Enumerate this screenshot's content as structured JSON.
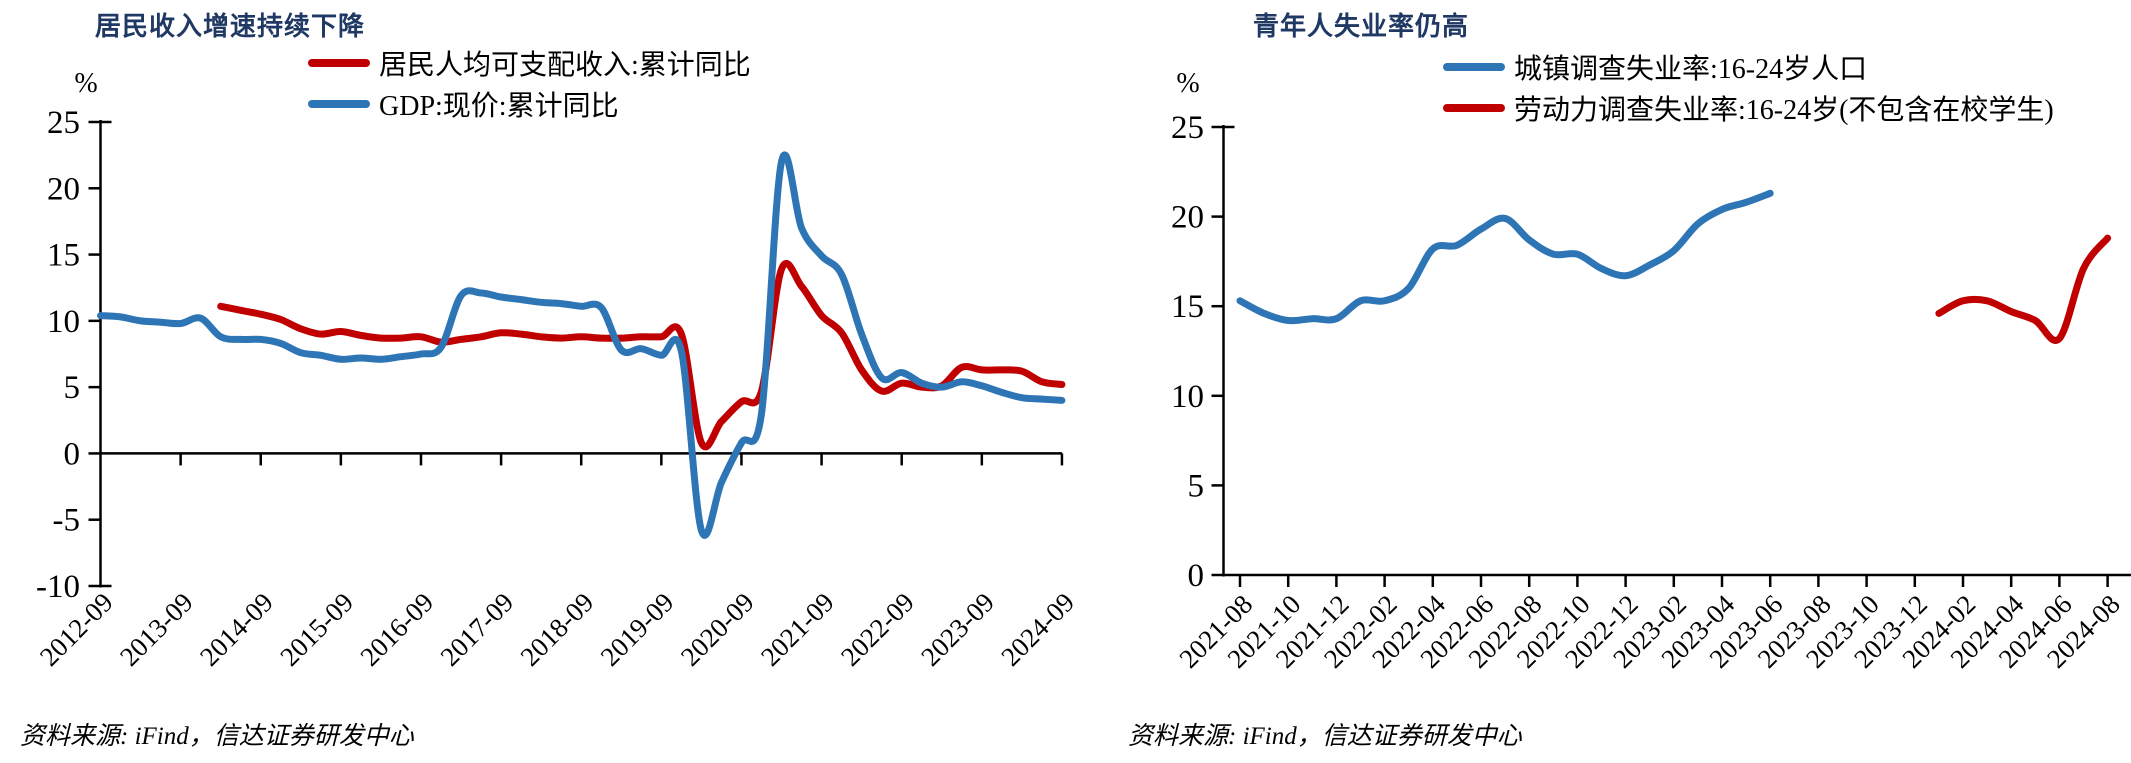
{
  "page": {
    "background": "#ffffff"
  },
  "chart_data": [
    {
      "id": "income-gdp",
      "type": "line",
      "title": "居民收入增速持续下降",
      "title_color": "#1f3864",
      "unit": "%",
      "source": "资料来源: iFind，信达证券研发中心",
      "grid": false,
      "legend_position": "top",
      "ylim": [
        -10,
        25
      ],
      "y_ticks": [
        25,
        20,
        15,
        10,
        5,
        0,
        -5,
        -10
      ],
      "x_labels": [
        "2012-09",
        "2013-09",
        "2014-09",
        "2015-09",
        "2016-09",
        "2017-09",
        "2018-09",
        "2019-09",
        "2020-09",
        "2021-09",
        "2022-09",
        "2023-09",
        "2024-09"
      ],
      "periods_per_label": 4,
      "period": "quarterly",
      "series": [
        {
          "name": "居民人均可支配收入:累计同比",
          "color": "#c00000",
          "start_index": 6,
          "values": [
            11.1,
            10.8,
            10.5,
            10.1,
            9.4,
            9.0,
            9.2,
            8.9,
            8.7,
            8.7,
            8.8,
            8.4,
            8.6,
            8.8,
            9.1,
            9.0,
            8.8,
            8.7,
            8.8,
            8.7,
            8.7,
            8.8,
            8.8,
            9.0,
            0.8,
            2.4,
            3.9,
            4.7,
            13.9,
            12.6,
            10.4,
            9.1,
            6.3,
            4.7,
            5.3,
            5.0,
            5.1,
            6.5,
            6.3,
            6.3,
            6.2,
            5.4,
            5.2
          ]
        },
        {
          "name": "GDP:现价:累计同比",
          "color": "#2e75b6",
          "start_index": 0,
          "values": [
            10.4,
            10.3,
            10.0,
            9.9,
            9.8,
            10.2,
            8.8,
            8.6,
            8.6,
            8.3,
            7.6,
            7.4,
            7.1,
            7.2,
            7.1,
            7.3,
            7.5,
            8.0,
            11.9,
            12.1,
            11.8,
            11.6,
            11.4,
            11.3,
            11.1,
            11.0,
            7.8,
            7.9,
            7.4,
            7.7,
            -5.8,
            -2.2,
            0.8,
            3.0,
            22.0,
            17.0,
            14.9,
            13.5,
            9.0,
            5.7,
            6.1,
            5.3,
            5.0,
            5.4,
            5.1,
            4.6,
            4.2,
            4.1,
            4.0
          ]
        }
      ]
    },
    {
      "id": "youth-unemployment",
      "type": "line",
      "title": "青年人失业率仍高",
      "title_color": "#1f3864",
      "unit": "%",
      "source": "资料来源: iFind，信达证券研发中心",
      "grid": false,
      "legend_position": "top",
      "ylim": [
        0,
        25
      ],
      "y_ticks": [
        25,
        20,
        15,
        10,
        5,
        0
      ],
      "x_labels": [
        "2021-08",
        "2021-10",
        "2021-12",
        "2022-02",
        "2022-04",
        "2022-06",
        "2022-08",
        "2022-10",
        "2022-12",
        "2023-02",
        "2023-04",
        "2023-06",
        "2023-08",
        "2023-10",
        "2023-12",
        "2024-02",
        "2024-04",
        "2024-06",
        "2024-08"
      ],
      "periods_per_label": 2,
      "period": "monthly",
      "series": [
        {
          "name": "城镇调查失业率:16-24岁人口",
          "color": "#2e75b6",
          "start_index": 0,
          "values": [
            15.3,
            14.6,
            14.2,
            14.3,
            14.3,
            15.3,
            15.3,
            16.0,
            18.2,
            18.4,
            19.3,
            19.9,
            18.7,
            17.9,
            17.9,
            17.1,
            16.7,
            17.3,
            18.1,
            19.6,
            20.4,
            20.8,
            21.3
          ]
        },
        {
          "name": "劳动力调查失业率:16-24岁(不包含在校学生)",
          "color": "#c00000",
          "start_index": 29,
          "values": [
            14.6,
            15.3,
            15.3,
            14.7,
            14.2,
            13.2,
            17.1,
            18.8
          ]
        }
      ]
    }
  ]
}
